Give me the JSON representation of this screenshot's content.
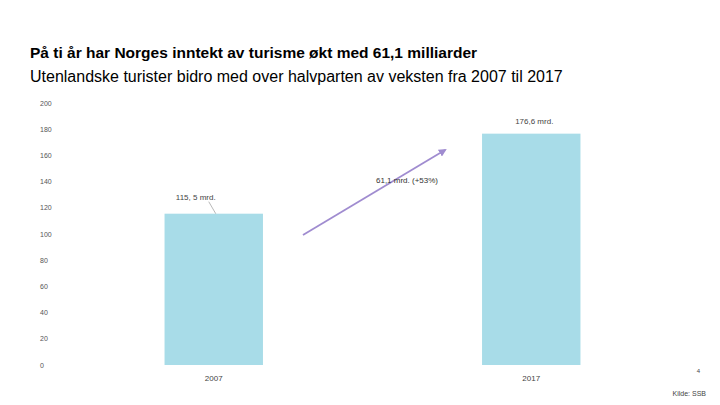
{
  "chart_data": {
    "type": "bar",
    "title": "På ti år har Norges inntekt av turisme økt med 61,1 milliarder",
    "subtitle": "Utenlandske turister bidro med over halvparten av veksten fra 2007 til 2017",
    "categories": [
      "2007",
      "2017"
    ],
    "values": [
      115.5,
      176.6
    ],
    "value_labels": [
      "115, 5 mrd.",
      "176,6 mrd."
    ],
    "data_labels": true,
    "color": "#a8dce8",
    "ylim": [
      0,
      200
    ],
    "yticks": [
      0,
      20,
      40,
      60,
      80,
      100,
      120,
      140,
      160,
      180,
      200
    ],
    "grid": false,
    "annotation": "61,1 mrd. (+53%)",
    "page_number": "4",
    "source": "Kilde: SSB"
  }
}
